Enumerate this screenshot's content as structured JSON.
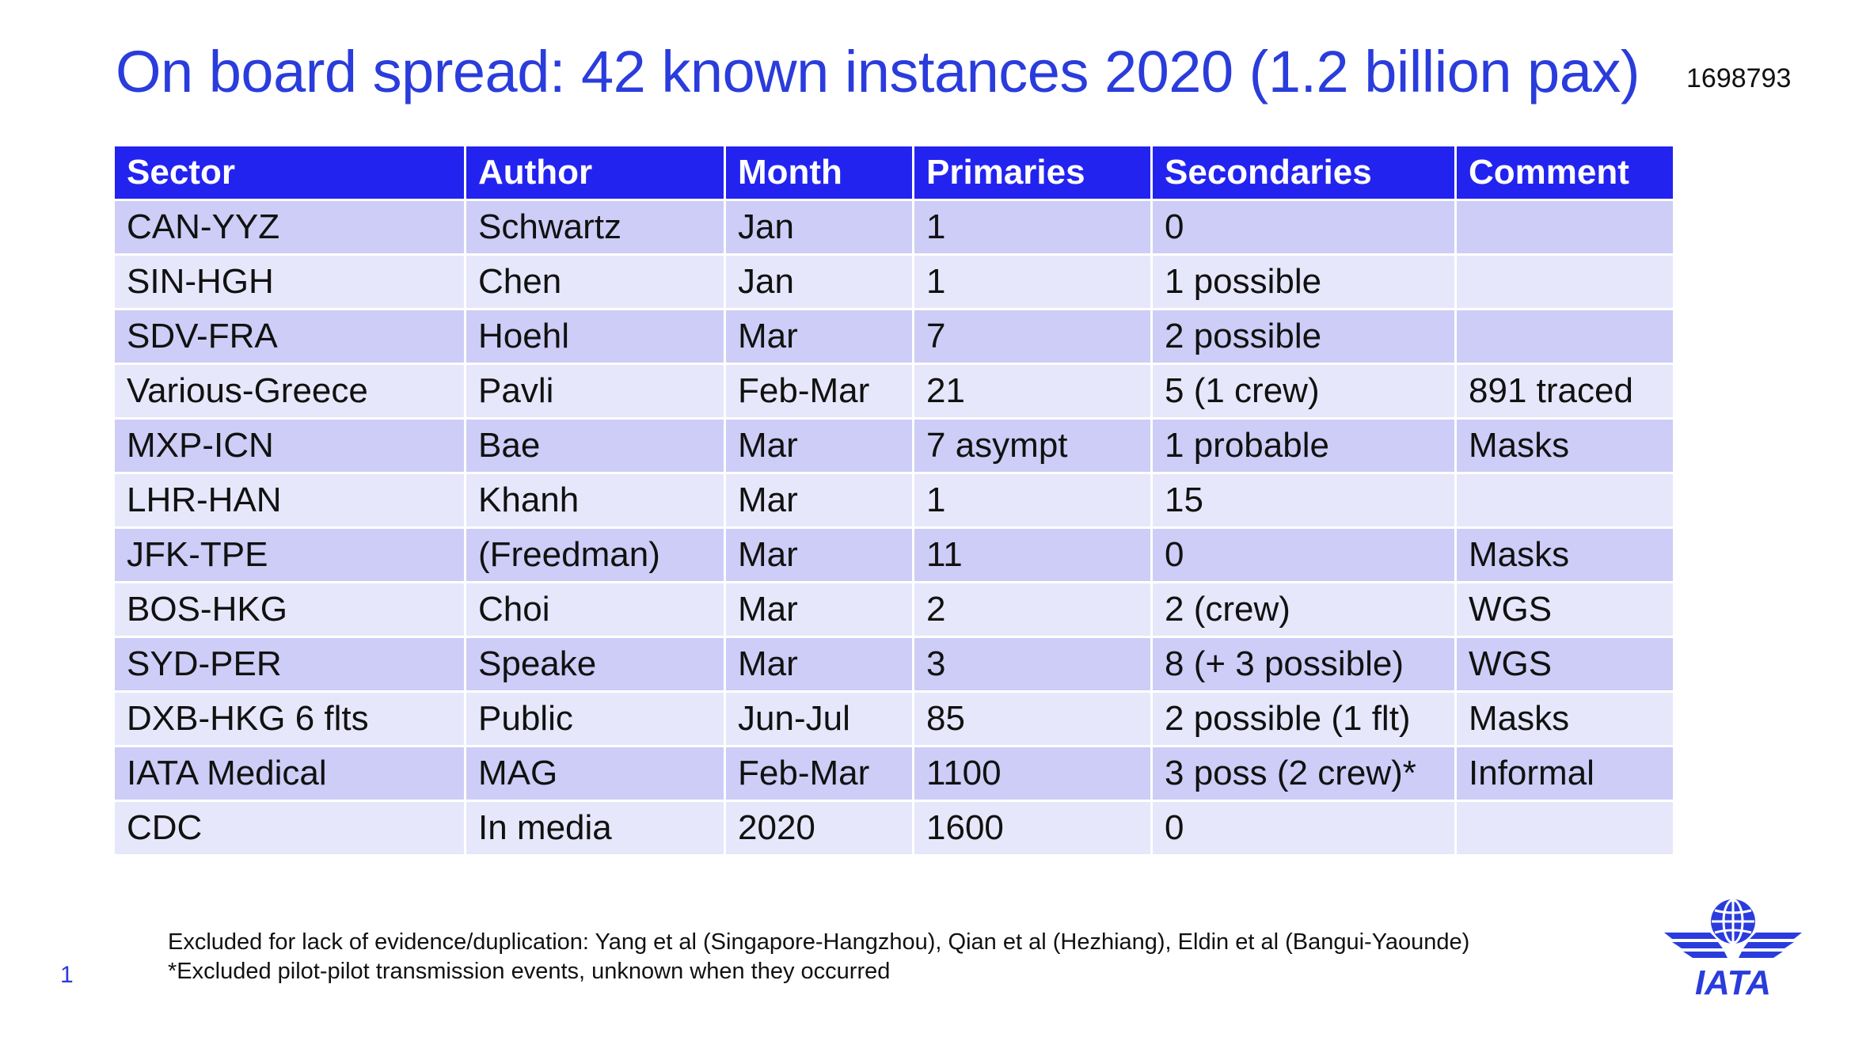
{
  "title": "On board spread: 42 known instances 2020 (1.2 billion pax)",
  "slide_id": "1698793",
  "table": {
    "headers": [
      "Sector",
      "Author",
      "Month",
      "Primaries",
      "Secondaries",
      "Comment"
    ],
    "rows": [
      [
        "CAN-YYZ",
        "Schwartz",
        "Jan",
        "1",
        "0",
        ""
      ],
      [
        "SIN-HGH",
        "Chen",
        "Jan",
        "1",
        "1 possible",
        ""
      ],
      [
        "SDV-FRA",
        "Hoehl",
        "Mar",
        "7",
        "2 possible",
        ""
      ],
      [
        "Various-Greece",
        "Pavli",
        "Feb-Mar",
        "21",
        "5 (1 crew)",
        "891 traced"
      ],
      [
        "MXP-ICN",
        "Bae",
        "Mar",
        "7 asympt",
        "1 probable",
        "Masks"
      ],
      [
        "LHR-HAN",
        "Khanh",
        "Mar",
        "1",
        "15",
        ""
      ],
      [
        "JFK-TPE",
        "(Freedman)",
        "Mar",
        "11",
        "0",
        "Masks"
      ],
      [
        "BOS-HKG",
        "Choi",
        "Mar",
        "2",
        "2 (crew)",
        "WGS"
      ],
      [
        "SYD-PER",
        "Speake",
        "Mar",
        "3",
        "8 (+ 3 possible)",
        "WGS"
      ],
      [
        "DXB-HKG 6 flts",
        "Public",
        "Jun-Jul",
        "85",
        "2 possible (1 flt)",
        "Masks"
      ],
      [
        "IATA Medical",
        "MAG",
        "Feb-Mar",
        "1100",
        "3 poss (2 crew)*",
        "Informal"
      ],
      [
        "CDC",
        "In media",
        "2020",
        "1600",
        "0",
        ""
      ]
    ]
  },
  "footnotes": {
    "line1": "Excluded for lack of evidence/duplication:  Yang et al (Singapore-Hangzhou), Qian et al (Hezhiang), Eldin et al (Bangui-Yaounde)",
    "line2": "*Excluded pilot-pilot transmission events, unknown when they occurred"
  },
  "page_number": "1",
  "logo": {
    "text": "IATA",
    "icon": "iata-globe-wings-logo",
    "color": "#2a3cdc"
  },
  "colors": {
    "title": "#2a3cdc",
    "header_bg": "#2323f0",
    "row_dark": "#cdcdf7",
    "row_light": "#e7e7fb"
  }
}
